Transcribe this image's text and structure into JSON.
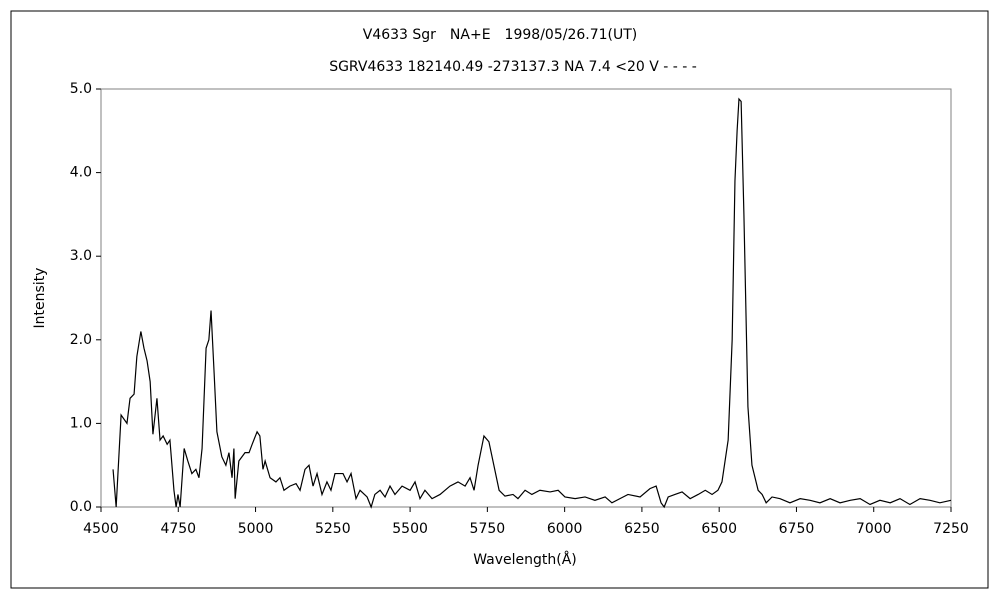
{
  "chart_data": {
    "type": "line",
    "title": "V4633 Sgr　NA+E　1998/05/26.71(UT)",
    "subtitle": "SGRV4633 182140.49 -273137.3 NA 7.4 <20 V - - - -",
    "x_label": "Wavelength(Å)",
    "y_label": "Intensity",
    "xlim": [
      4500,
      7250
    ],
    "xticks": [
      4500,
      4750,
      5000,
      5250,
      5500,
      5750,
      6000,
      6250,
      6500,
      6750,
      7000,
      7250
    ],
    "ylim": [
      0,
      5
    ],
    "yticks": [
      {
        "value": 0,
        "label": "0.0"
      },
      {
        "value": 1,
        "label": "1.0"
      },
      {
        "value": 2,
        "label": "2.0"
      },
      {
        "value": 3,
        "label": "3.0"
      },
      {
        "value": 4,
        "label": "4.0"
      },
      {
        "value": 5,
        "label": "5.0"
      }
    ],
    "grid": false,
    "series": [
      {
        "color": "#000000",
        "x": [
          4539,
          4549,
          4565,
          4584,
          4594,
          4607,
          4616,
          4629,
          4639,
          4649,
          4659,
          4668,
          4681,
          4691,
          4701,
          4714,
          4723,
          4736,
          4743,
          4749,
          4756,
          4769,
          4781,
          4794,
          4807,
          4817,
          4827,
          4840,
          4849,
          4856,
          4866,
          4875,
          4891,
          4904,
          4914,
          4924,
          4930,
          4934,
          4946,
          4966,
          4979,
          4989,
          5005,
          5014,
          5024,
          5031,
          5047,
          5066,
          5079,
          5092,
          5111,
          5131,
          5144,
          5160,
          5173,
          5186,
          5199,
          5215,
          5231,
          5244,
          5257,
          5283,
          5296,
          5309,
          5325,
          5338,
          5361,
          5374,
          5386,
          5403,
          5419,
          5435,
          5451,
          5474,
          5500,
          5516,
          5532,
          5548,
          5571,
          5597,
          5629,
          5655,
          5678,
          5694,
          5707,
          5720,
          5739,
          5755,
          5771,
          5788,
          5807,
          5833,
          5849,
          5872,
          5894,
          5920,
          5953,
          5979,
          6001,
          6034,
          6066,
          6098,
          6131,
          6153,
          6179,
          6205,
          6244,
          6276,
          6296,
          6312,
          6322,
          6335,
          6357,
          6380,
          6406,
          6432,
          6455,
          6477,
          6496,
          6509,
          6529,
          6542,
          6551,
          6558,
          6564,
          6571,
          6580,
          6593,
          6606,
          6626,
          6639,
          6652,
          6671,
          6697,
          6729,
          6762,
          6794,
          6826,
          6859,
          6891,
          6924,
          6956,
          6988,
          7020,
          7053,
          7085,
          7117,
          7150,
          7182,
          7214,
          7250
        ],
        "values": [
          0.45,
          0,
          1.1,
          1.0,
          1.3,
          1.35,
          1.8,
          2.1,
          1.9,
          1.75,
          1.5,
          0.87,
          1.3,
          0.8,
          0.85,
          0.75,
          0.8,
          0.2,
          0,
          0.15,
          0,
          0.7,
          0.55,
          0.4,
          0.45,
          0.35,
          0.7,
          1.9,
          2.0,
          2.35,
          1.6,
          0.9,
          0.6,
          0.5,
          0.65,
          0.35,
          0.7,
          0.1,
          0.55,
          0.65,
          0.65,
          0.75,
          0.9,
          0.85,
          0.45,
          0.55,
          0.35,
          0.3,
          0.35,
          0.2,
          0.25,
          0.28,
          0.2,
          0.45,
          0.5,
          0.25,
          0.4,
          0.15,
          0.3,
          0.2,
          0.4,
          0.4,
          0.3,
          0.4,
          0.1,
          0.2,
          0.12,
          0,
          0.15,
          0.2,
          0.12,
          0.25,
          0.15,
          0.25,
          0.2,
          0.3,
          0.1,
          0.2,
          0.1,
          0.15,
          0.25,
          0.3,
          0.25,
          0.35,
          0.2,
          0.5,
          0.85,
          0.78,
          0.5,
          0.2,
          0.13,
          0.15,
          0.1,
          0.2,
          0.15,
          0.2,
          0.18,
          0.2,
          0.12,
          0.1,
          0.12,
          0.08,
          0.12,
          0.05,
          0.1,
          0.15,
          0.12,
          0.22,
          0.25,
          0.05,
          0,
          0.12,
          0.15,
          0.18,
          0.1,
          0.15,
          0.2,
          0.15,
          0.2,
          0.3,
          0.8,
          2.0,
          3.9,
          4.5,
          4.88,
          4.85,
          3.5,
          1.2,
          0.5,
          0.2,
          0.15,
          0.05,
          0.12,
          0.1,
          0.05,
          0.1,
          0.08,
          0.05,
          0.1,
          0.05,
          0.08,
          0.1,
          0.03,
          0.08,
          0.05,
          0.1,
          0.03,
          0.1,
          0.08,
          0.05,
          0.08
        ]
      }
    ]
  }
}
